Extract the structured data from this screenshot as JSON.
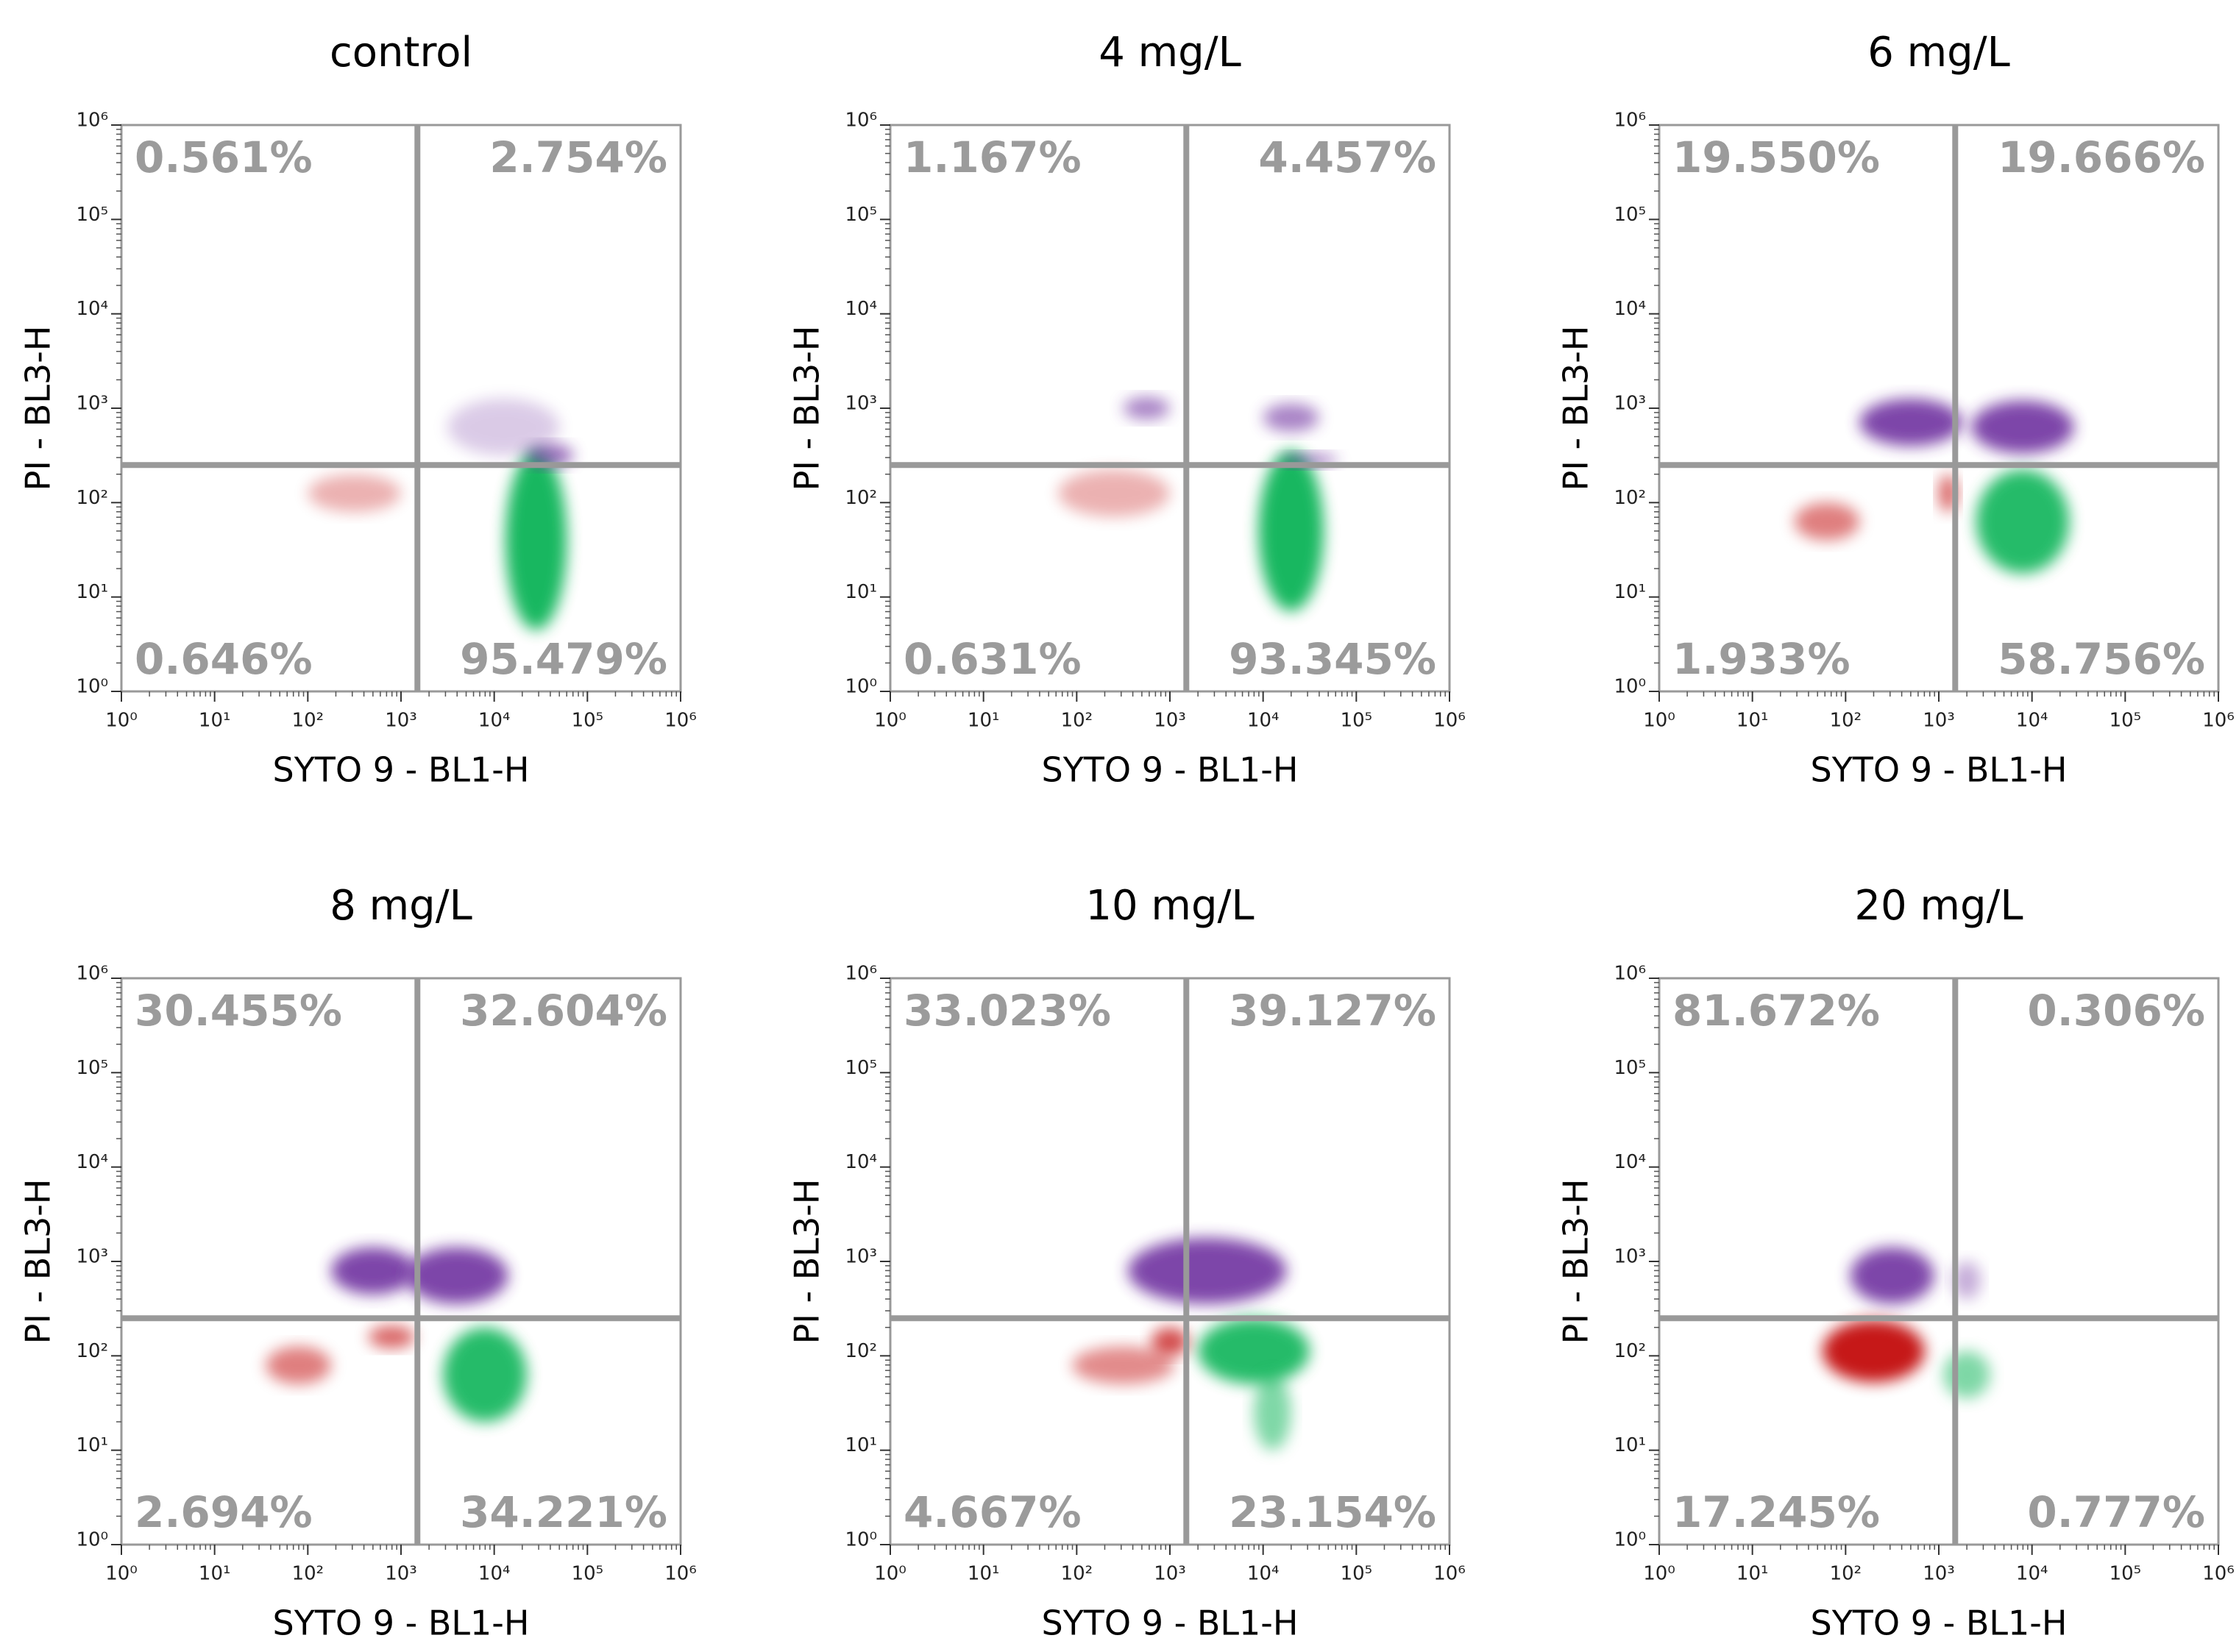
{
  "chart_data": [
    {
      "type": "scatter",
      "title": "control",
      "xlabel": "SYTO 9 - BL1-H",
      "ylabel": "PI  - BL3-H",
      "log_x": true,
      "log_y": true,
      "xlim": [
        1,
        1000000
      ],
      "ylim": [
        1,
        1000000
      ],
      "xticks": [
        {
          "value": 1,
          "label": "10⁰"
        },
        {
          "value": 10,
          "label": "10¹"
        },
        {
          "value": 100,
          "label": "10²"
        },
        {
          "value": 1000,
          "label": "10³"
        },
        {
          "value": 10000,
          "label": "10⁴"
        },
        {
          "value": 100000,
          "label": "10⁵"
        },
        {
          "value": 1000000,
          "label": "10⁶"
        }
      ],
      "yticks": [
        {
          "value": 1,
          "label": "10⁰"
        },
        {
          "value": 10,
          "label": "10¹"
        },
        {
          "value": 100,
          "label": "10²"
        },
        {
          "value": 1000,
          "label": "10³"
        },
        {
          "value": 10000,
          "label": "10⁴"
        },
        {
          "value": 100000,
          "label": "10⁵"
        },
        {
          "value": 1000000,
          "label": "10⁶"
        }
      ],
      "gates": {
        "x": 1500,
        "y": 250
      },
      "values": [
        0.561,
        2.754,
        0.646,
        95.479
      ],
      "value_labels": [
        "0.561%",
        "2.754%",
        "0.646%",
        "95.479%"
      ]
    },
    {
      "type": "scatter",
      "title": "4 mg/L",
      "xlabel": "SYTO 9 - BL1-H",
      "ylabel": "PI  - BL3-H",
      "log_x": true,
      "log_y": true,
      "xlim": [
        1,
        1000000
      ],
      "ylim": [
        1,
        1000000
      ],
      "xticks": [
        {
          "value": 1,
          "label": "10⁰"
        },
        {
          "value": 10,
          "label": "10¹"
        },
        {
          "value": 100,
          "label": "10²"
        },
        {
          "value": 1000,
          "label": "10³"
        },
        {
          "value": 10000,
          "label": "10⁴"
        },
        {
          "value": 100000,
          "label": "10⁵"
        },
        {
          "value": 1000000,
          "label": "10⁶"
        }
      ],
      "yticks": [
        {
          "value": 1,
          "label": "10⁰"
        },
        {
          "value": 10,
          "label": "10¹"
        },
        {
          "value": 100,
          "label": "10²"
        },
        {
          "value": 1000,
          "label": "10³"
        },
        {
          "value": 10000,
          "label": "10⁴"
        },
        {
          "value": 100000,
          "label": "10⁵"
        },
        {
          "value": 1000000,
          "label": "10⁶"
        }
      ],
      "gates": {
        "x": 1500,
        "y": 250
      },
      "values": [
        1.167,
        4.457,
        0.631,
        93.345
      ],
      "value_labels": [
        "1.167%",
        "4.457%",
        "0.631%",
        "93.345%"
      ]
    },
    {
      "type": "scatter",
      "title": "6 mg/L",
      "xlabel": "SYTO 9 - BL1-H",
      "ylabel": "PI  - BL3-H",
      "log_x": true,
      "log_y": true,
      "xlim": [
        1,
        1000000
      ],
      "ylim": [
        1,
        1000000
      ],
      "xticks": [
        {
          "value": 1,
          "label": "10⁰"
        },
        {
          "value": 10,
          "label": "10¹"
        },
        {
          "value": 100,
          "label": "10²"
        },
        {
          "value": 1000,
          "label": "10³"
        },
        {
          "value": 10000,
          "label": "10⁴"
        },
        {
          "value": 100000,
          "label": "10⁵"
        },
        {
          "value": 1000000,
          "label": "10⁶"
        }
      ],
      "yticks": [
        {
          "value": 1,
          "label": "10⁰"
        },
        {
          "value": 10,
          "label": "10¹"
        },
        {
          "value": 100,
          "label": "10²"
        },
        {
          "value": 1000,
          "label": "10³"
        },
        {
          "value": 10000,
          "label": "10⁴"
        },
        {
          "value": 100000,
          "label": "10⁵"
        },
        {
          "value": 1000000,
          "label": "10⁶"
        }
      ],
      "gates": {
        "x": 1500,
        "y": 250
      },
      "values": [
        19.55,
        19.666,
        1.933,
        58.756
      ],
      "value_labels": [
        "19.550%",
        "19.666%",
        "1.933%",
        "58.756%"
      ]
    },
    {
      "type": "scatter",
      "title": "8 mg/L",
      "xlabel": "SYTO 9 - BL1-H",
      "ylabel": "PI  - BL3-H",
      "log_x": true,
      "log_y": true,
      "xlim": [
        1,
        1000000
      ],
      "ylim": [
        1,
        1000000
      ],
      "xticks": [
        {
          "value": 1,
          "label": "10⁰"
        },
        {
          "value": 10,
          "label": "10¹"
        },
        {
          "value": 100,
          "label": "10²"
        },
        {
          "value": 1000,
          "label": "10³"
        },
        {
          "value": 10000,
          "label": "10⁴"
        },
        {
          "value": 100000,
          "label": "10⁵"
        },
        {
          "value": 1000000,
          "label": "10⁶"
        }
      ],
      "yticks": [
        {
          "value": 1,
          "label": "10⁰"
        },
        {
          "value": 10,
          "label": "10¹"
        },
        {
          "value": 100,
          "label": "10²"
        },
        {
          "value": 1000,
          "label": "10³"
        },
        {
          "value": 10000,
          "label": "10⁴"
        },
        {
          "value": 100000,
          "label": "10⁵"
        },
        {
          "value": 1000000,
          "label": "10⁶"
        }
      ],
      "gates": {
        "x": 1500,
        "y": 250
      },
      "values": [
        30.455,
        32.604,
        2.694,
        34.221
      ],
      "value_labels": [
        "30.455%",
        "32.604%",
        "2.694%",
        "34.221%"
      ]
    },
    {
      "type": "scatter",
      "title": "10 mg/L",
      "xlabel": "SYTO 9 - BL1-H",
      "ylabel": "PI  - BL3-H",
      "log_x": true,
      "log_y": true,
      "xlim": [
        1,
        1000000
      ],
      "ylim": [
        1,
        1000000
      ],
      "xticks": [
        {
          "value": 1,
          "label": "10⁰"
        },
        {
          "value": 10,
          "label": "10¹"
        },
        {
          "value": 100,
          "label": "10²"
        },
        {
          "value": 1000,
          "label": "10³"
        },
        {
          "value": 10000,
          "label": "10⁴"
        },
        {
          "value": 100000,
          "label": "10⁵"
        },
        {
          "value": 1000000,
          "label": "10⁶"
        }
      ],
      "yticks": [
        {
          "value": 1,
          "label": "10⁰"
        },
        {
          "value": 10,
          "label": "10¹"
        },
        {
          "value": 100,
          "label": "10²"
        },
        {
          "value": 1000,
          "label": "10³"
        },
        {
          "value": 10000,
          "label": "10⁴"
        },
        {
          "value": 100000,
          "label": "10⁵"
        },
        {
          "value": 1000000,
          "label": "10⁶"
        }
      ],
      "gates": {
        "x": 1500,
        "y": 250
      },
      "values": [
        33.023,
        39.127,
        4.667,
        23.154
      ],
      "value_labels": [
        "33.023%",
        "39.127%",
        "4.667%",
        "23.154%"
      ]
    },
    {
      "type": "scatter",
      "title": "20 mg/L",
      "xlabel": "SYTO 9 - BL1-H",
      "ylabel": "PI  - BL3-H",
      "log_x": true,
      "log_y": true,
      "xlim": [
        1,
        1000000
      ],
      "ylim": [
        1,
        1000000
      ],
      "xticks": [
        {
          "value": 1,
          "label": "10⁰"
        },
        {
          "value": 10,
          "label": "10¹"
        },
        {
          "value": 100,
          "label": "10²"
        },
        {
          "value": 1000,
          "label": "10³"
        },
        {
          "value": 10000,
          "label": "10⁴"
        },
        {
          "value": 100000,
          "label": "10⁵"
        },
        {
          "value": 1000000,
          "label": "10⁶"
        }
      ],
      "yticks": [
        {
          "value": 1,
          "label": "10⁰"
        },
        {
          "value": 10,
          "label": "10¹"
        },
        {
          "value": 100,
          "label": "10²"
        },
        {
          "value": 1000,
          "label": "10³"
        },
        {
          "value": 10000,
          "label": "10⁴"
        },
        {
          "value": 100000,
          "label": "10⁵"
        },
        {
          "value": 1000000,
          "label": "10⁶"
        }
      ],
      "gates": {
        "x": 1500,
        "y": 250
      },
      "values": [
        81.672,
        0.306,
        17.245,
        0.777
      ],
      "value_labels": [
        "81.672%",
        "0.306%",
        "17.245%",
        "0.777%"
      ]
    }
  ]
}
